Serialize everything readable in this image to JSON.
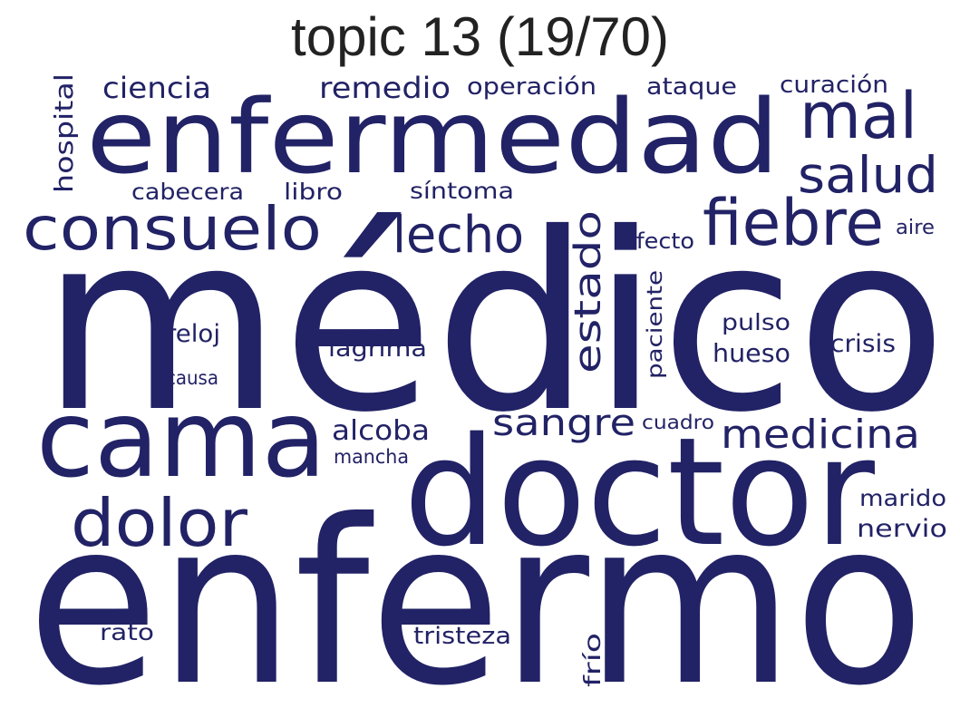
{
  "title": "topic 13 (19/70)",
  "colors": {
    "word": "#222266",
    "title": "#222222"
  },
  "words": [
    {
      "text": "médico"
    },
    {
      "text": "enfermo"
    },
    {
      "text": "doctor"
    },
    {
      "text": "enfermedad"
    },
    {
      "text": "cama"
    },
    {
      "text": "consuelo"
    },
    {
      "text": "fiebre"
    },
    {
      "text": "dolor"
    },
    {
      "text": "mal"
    },
    {
      "text": "lecho"
    },
    {
      "text": "salud"
    },
    {
      "text": "medicina"
    },
    {
      "text": "estado"
    },
    {
      "text": "sangre"
    },
    {
      "text": "remedio"
    },
    {
      "text": "ciencia"
    },
    {
      "text": "hospital"
    },
    {
      "text": "operación"
    },
    {
      "text": "ataque"
    },
    {
      "text": "curación"
    },
    {
      "text": "alcoba"
    },
    {
      "text": "marido"
    },
    {
      "text": "nervio"
    },
    {
      "text": "tristeza"
    },
    {
      "text": "lágrima"
    },
    {
      "text": "hueso"
    },
    {
      "text": "crisis"
    },
    {
      "text": "pulso"
    },
    {
      "text": "paciente"
    },
    {
      "text": "cabecera"
    },
    {
      "text": "libro"
    },
    {
      "text": "síntoma"
    },
    {
      "text": "efecto"
    },
    {
      "text": "aire"
    },
    {
      "text": "reloj"
    },
    {
      "text": "causa"
    },
    {
      "text": "cuadro"
    },
    {
      "text": "mancha"
    },
    {
      "text": "rato"
    },
    {
      "text": "frío"
    }
  ]
}
